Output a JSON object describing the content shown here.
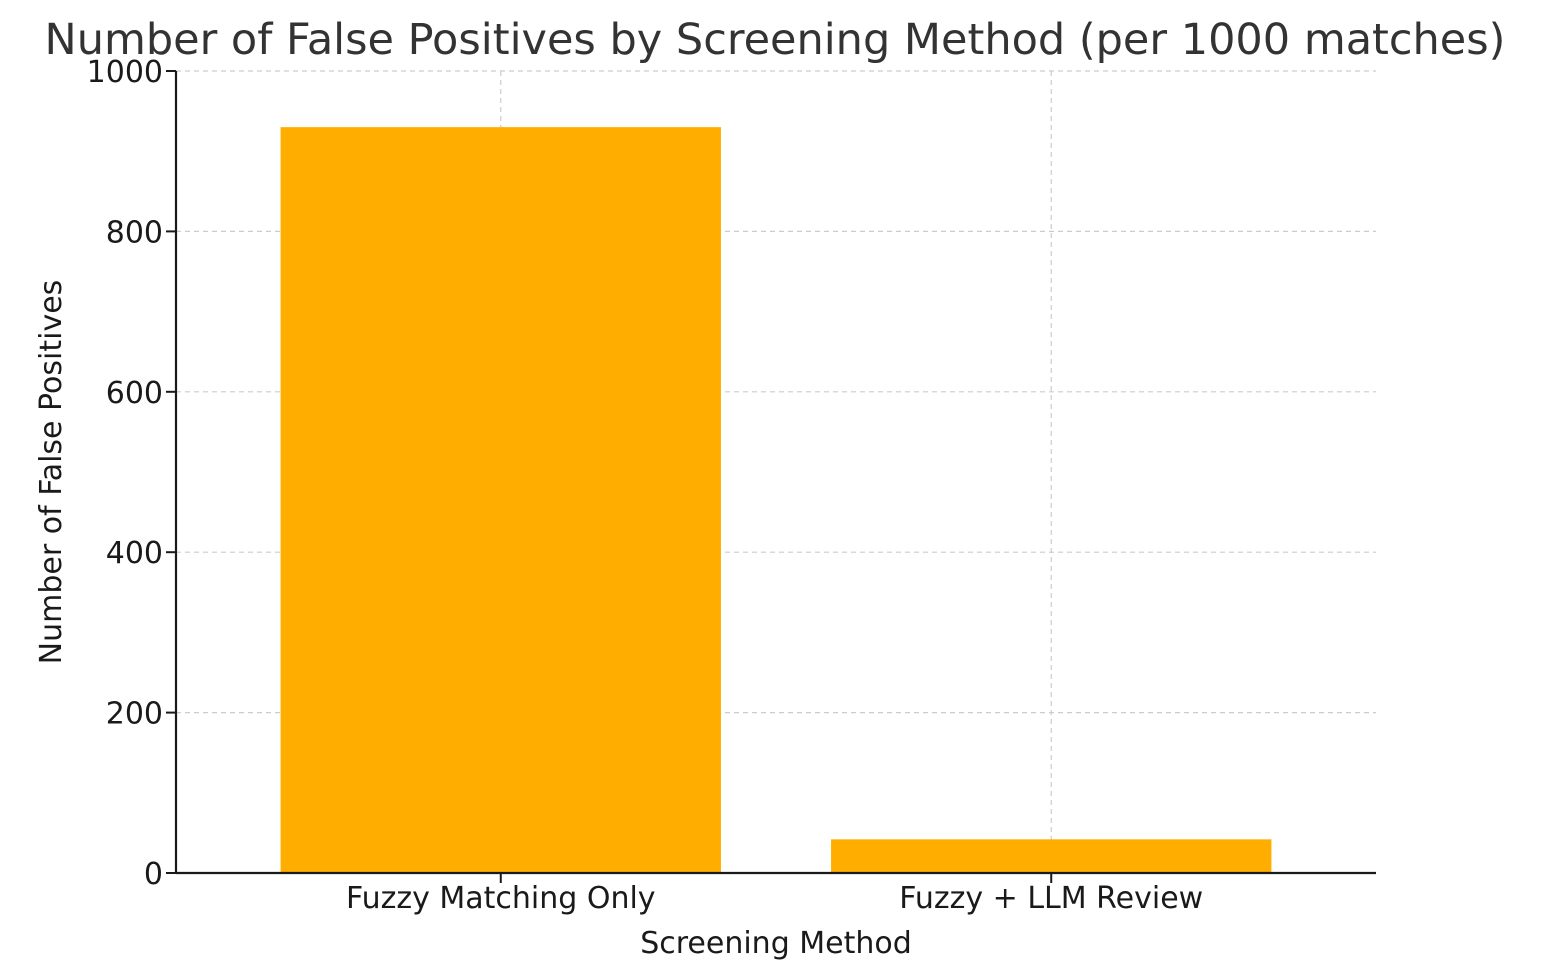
{
  "chart_data": {
    "type": "bar",
    "title": "Number of False Positives by Screening Method (per 1000 matches)",
    "xlabel": "Screening Method",
    "ylabel": "Number of False Positives",
    "categories": [
      "Fuzzy Matching Only",
      "Fuzzy + LLM Review"
    ],
    "values": [
      930,
      42
    ],
    "ylim": [
      0,
      1000
    ],
    "yticks": [
      0,
      200,
      400,
      600,
      800,
      1000
    ],
    "grid": true,
    "bar_color": "#FFAE00"
  }
}
